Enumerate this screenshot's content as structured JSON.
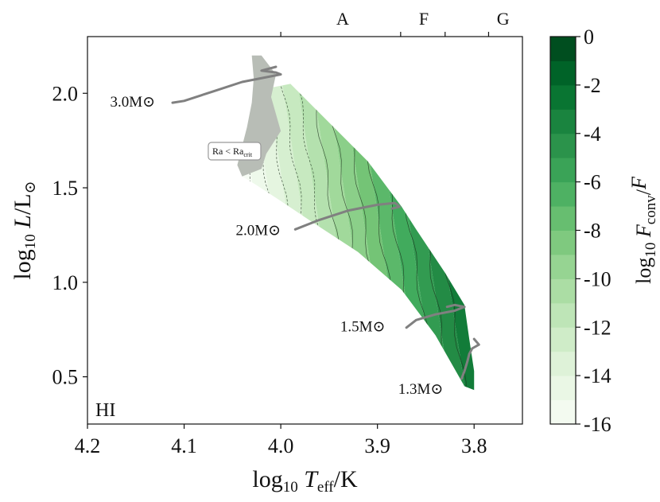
{
  "chart_data": {
    "type": "heatmap",
    "title": "",
    "xlabel": "log10 Teff/K",
    "ylabel": "log10 L/L⊙",
    "xlim": [
      4.2,
      3.75
    ],
    "ylim": [
      0.25,
      2.3
    ],
    "xticks": [
      4.2,
      4.1,
      4.0,
      3.9,
      3.8
    ],
    "xtick_labels": [
      "4.2",
      "4.1",
      "4.0",
      "3.9",
      "3.8"
    ],
    "yticks": [
      0.5,
      1.0,
      1.5,
      2.0
    ],
    "ytick_labels": [
      "0.5",
      "1.0",
      "1.5",
      "2.0"
    ],
    "top_axis": {
      "ticks": [
        4.0,
        3.876,
        3.83,
        3.785
      ],
      "spectral_types": [
        {
          "label": "A",
          "x": 3.936
        },
        {
          "label": "F",
          "x": 3.852
        },
        {
          "label": "G",
          "x": 3.77
        }
      ]
    },
    "corner_label": "HI",
    "stable_region_label": "Ra < Ra_crit",
    "colorbar": {
      "label": "log10 Fconv/F",
      "range": [
        -16,
        0
      ],
      "ticks": [
        0,
        -2,
        -4,
        -6,
        -8,
        -10,
        -12,
        -14,
        -16
      ],
      "tick_labels": [
        "0",
        "-2",
        "-4",
        "-6",
        "-8",
        "-10",
        "-12",
        "-14",
        "-16"
      ],
      "levels": 16,
      "colormap": "Greens",
      "color_low": "#f2faef",
      "color_high": "#00441b"
    },
    "region_polygon": [
      [
        4.01,
        2.03
      ],
      [
        3.99,
        2.05
      ],
      [
        3.91,
        1.64
      ],
      [
        3.875,
        1.4
      ],
      [
        3.86,
        1.28
      ],
      [
        3.83,
        1.05
      ],
      [
        3.81,
        0.88
      ],
      [
        3.805,
        0.7
      ],
      [
        3.8,
        0.53
      ],
      [
        3.8,
        0.43
      ],
      [
        3.81,
        0.45
      ],
      [
        3.84,
        0.72
      ],
      [
        3.875,
        0.96
      ],
      [
        3.92,
        1.16
      ],
      [
        3.965,
        1.31
      ],
      [
        4.0,
        1.43
      ],
      [
        4.027,
        1.52
      ],
      [
        4.04,
        1.56
      ],
      [
        4.02,
        1.72
      ],
      [
        4.02,
        1.9
      ]
    ],
    "gray_region_polygon": [
      [
        4.03,
        2.2
      ],
      [
        4.02,
        2.2
      ],
      [
        4.005,
        2.1
      ],
      [
        4.01,
        1.98
      ],
      [
        4.0,
        1.8
      ],
      [
        4.015,
        1.68
      ],
      [
        4.02,
        1.6
      ],
      [
        4.04,
        1.56
      ],
      [
        4.045,
        1.62
      ],
      [
        4.04,
        1.72
      ],
      [
        4.035,
        1.82
      ],
      [
        4.03,
        1.95
      ],
      [
        4.028,
        2.08
      ]
    ],
    "tracks": [
      {
        "name": "3.0M⊙",
        "label_at": [
          4.13,
          1.93
        ],
        "points": [
          [
            4.112,
            1.95
          ],
          [
            4.1,
            1.96
          ],
          [
            4.07,
            2.01
          ],
          [
            4.04,
            2.06
          ],
          [
            4.01,
            2.09
          ],
          [
            4.0,
            2.1
          ],
          [
            4.005,
            2.11
          ],
          [
            4.02,
            2.12
          ],
          [
            4.005,
            2.14
          ]
        ]
      },
      {
        "name": "2.0M⊙",
        "label_at": [
          4.0,
          1.25
        ],
        "points": [
          [
            3.985,
            1.28
          ],
          [
            3.96,
            1.33
          ],
          [
            3.93,
            1.38
          ],
          [
            3.9,
            1.41
          ],
          [
            3.882,
            1.42
          ],
          [
            3.877,
            1.4
          ],
          [
            3.885,
            1.39
          ]
        ]
      },
      {
        "name": "1.5M⊙",
        "label_at": [
          3.892,
          0.74
        ],
        "points": [
          [
            3.87,
            0.76
          ],
          [
            3.86,
            0.8
          ],
          [
            3.84,
            0.83
          ],
          [
            3.82,
            0.85
          ],
          [
            3.81,
            0.87
          ],
          [
            3.82,
            0.88
          ],
          [
            3.828,
            0.87
          ]
        ]
      },
      {
        "name": "1.3M⊙",
        "label_at": [
          3.832,
          0.41
        ],
        "points": [
          [
            3.813,
            0.49
          ],
          [
            3.81,
            0.53
          ],
          [
            3.807,
            0.58
          ],
          [
            3.805,
            0.62
          ],
          [
            3.802,
            0.65
          ],
          [
            3.795,
            0.67
          ],
          [
            3.8,
            0.7
          ]
        ]
      }
    ]
  }
}
